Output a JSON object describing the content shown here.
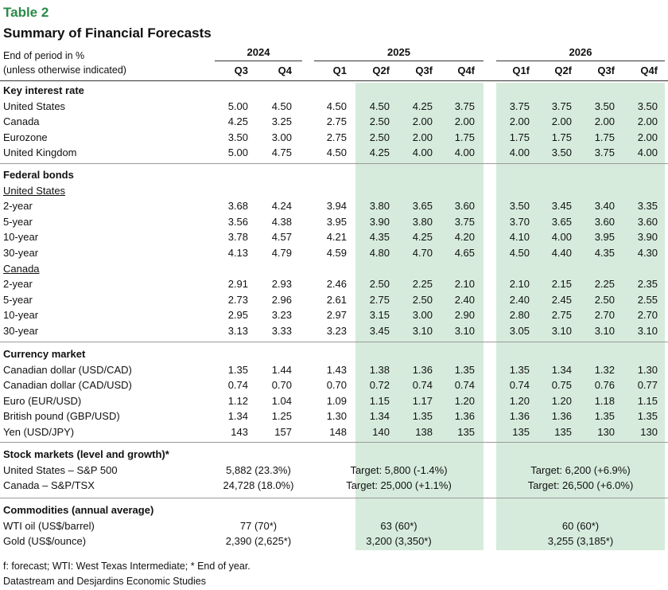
{
  "table_label": "Table 2",
  "table_title": "Summary of Financial Forecasts",
  "header": {
    "note_line1": "End of period in %",
    "note_line2": "(unless otherwise indicated)",
    "years": [
      "2024",
      "2025",
      "2026"
    ],
    "quarters": [
      "Q3",
      "Q4",
      "Q1",
      "Q2f",
      "Q3f",
      "Q4f",
      "Q1f",
      "Q2f",
      "Q3f",
      "Q4f"
    ]
  },
  "key_interest_rate": {
    "title": "Key interest rate",
    "rows": [
      {
        "label": "United States",
        "values": [
          "5.00",
          "4.50",
          "4.50",
          "4.50",
          "4.25",
          "3.75",
          "3.75",
          "3.75",
          "3.50",
          "3.50"
        ]
      },
      {
        "label": "Canada",
        "values": [
          "4.25",
          "3.25",
          "2.75",
          "2.50",
          "2.00",
          "2.00",
          "2.00",
          "2.00",
          "2.00",
          "2.00"
        ]
      },
      {
        "label": "Eurozone",
        "values": [
          "3.50",
          "3.00",
          "2.75",
          "2.50",
          "2.00",
          "1.75",
          "1.75",
          "1.75",
          "1.75",
          "2.00"
        ]
      },
      {
        "label": "United Kingdom",
        "values": [
          "5.00",
          "4.75",
          "4.50",
          "4.25",
          "4.00",
          "4.00",
          "4.00",
          "3.50",
          "3.75",
          "4.00"
        ]
      }
    ]
  },
  "federal_bonds": {
    "title": "Federal bonds",
    "us_label": "United States",
    "us_rows": [
      {
        "label": "2-year",
        "values": [
          "3.68",
          "4.24",
          "3.94",
          "3.80",
          "3.65",
          "3.60",
          "3.50",
          "3.45",
          "3.40",
          "3.35"
        ]
      },
      {
        "label": "5-year",
        "values": [
          "3.56",
          "4.38",
          "3.95",
          "3.90",
          "3.80",
          "3.75",
          "3.70",
          "3.65",
          "3.60",
          "3.60"
        ]
      },
      {
        "label": "10-year",
        "values": [
          "3.78",
          "4.57",
          "4.21",
          "4.35",
          "4.25",
          "4.20",
          "4.10",
          "4.00",
          "3.95",
          "3.90"
        ]
      },
      {
        "label": "30-year",
        "values": [
          "4.13",
          "4.79",
          "4.59",
          "4.80",
          "4.70",
          "4.65",
          "4.50",
          "4.40",
          "4.35",
          "4.30"
        ]
      }
    ],
    "ca_label": "Canada",
    "ca_rows": [
      {
        "label": "2-year",
        "values": [
          "2.91",
          "2.93",
          "2.46",
          "2.50",
          "2.25",
          "2.10",
          "2.10",
          "2.15",
          "2.25",
          "2.35"
        ]
      },
      {
        "label": "5-year",
        "values": [
          "2.73",
          "2.96",
          "2.61",
          "2.75",
          "2.50",
          "2.40",
          "2.40",
          "2.45",
          "2.50",
          "2.55"
        ]
      },
      {
        "label": "10-year",
        "values": [
          "2.95",
          "3.23",
          "2.97",
          "3.15",
          "3.00",
          "2.90",
          "2.80",
          "2.75",
          "2.70",
          "2.70"
        ]
      },
      {
        "label": "30-year",
        "values": [
          "3.13",
          "3.33",
          "3.23",
          "3.45",
          "3.10",
          "3.10",
          "3.05",
          "3.10",
          "3.10",
          "3.10"
        ]
      }
    ]
  },
  "currency_market": {
    "title": "Currency market",
    "rows": [
      {
        "label": "Canadian dollar (USD/CAD)",
        "values": [
          "1.35",
          "1.44",
          "1.43",
          "1.38",
          "1.36",
          "1.35",
          "1.35",
          "1.34",
          "1.32",
          "1.30"
        ]
      },
      {
        "label": "Canadian dollar (CAD/USD)",
        "values": [
          "0.74",
          "0.70",
          "0.70",
          "0.72",
          "0.74",
          "0.74",
          "0.74",
          "0.75",
          "0.76",
          "0.77"
        ]
      },
      {
        "label": "Euro (EUR/USD)",
        "values": [
          "1.12",
          "1.04",
          "1.09",
          "1.15",
          "1.17",
          "1.20",
          "1.20",
          "1.20",
          "1.18",
          "1.15"
        ]
      },
      {
        "label": "British pound (GBP/USD)",
        "values": [
          "1.34",
          "1.25",
          "1.30",
          "1.34",
          "1.35",
          "1.36",
          "1.36",
          "1.36",
          "1.35",
          "1.35"
        ]
      },
      {
        "label": "Yen (USD/JPY)",
        "values": [
          "143",
          "157",
          "148",
          "140",
          "138",
          "135",
          "135",
          "135",
          "130",
          "130"
        ]
      }
    ]
  },
  "stock_markets": {
    "title": "Stock markets (level and growth)*",
    "rows": [
      {
        "label": "United States – S&P 500",
        "y2024": "5,882 (23.3%)",
        "y2025": "Target: 5,800 (-1.4%)",
        "y2026": "Target: 6,200 (+6.9%)"
      },
      {
        "label": "Canada – S&P/TSX",
        "y2024": "24,728 (18.0%)",
        "y2025": "Target: 25,000 (+1.1%)",
        "y2026": "Target: 26,500 (+6.0%)"
      }
    ]
  },
  "commodities": {
    "title": "Commodities (annual average)",
    "rows": [
      {
        "label": "WTI oil (US$/barrel)",
        "y2024": "77 (70*)",
        "y2025": "63 (60*)",
        "y2026": "60 (60*)"
      },
      {
        "label": "Gold (US$/ounce)",
        "y2024": "2,390 (2,625*)",
        "y2025": "3,200 (3,350*)",
        "y2026": "3,255 (3,185*)"
      }
    ]
  },
  "footnotes": {
    "line1": "f: forecast; WTI: West Texas Intermediate; * End of year.",
    "line2": "Datastream and Desjardins Economic Studies"
  },
  "colors": {
    "title_green": "#2b8a47",
    "shade": "#d6ebdc"
  }
}
